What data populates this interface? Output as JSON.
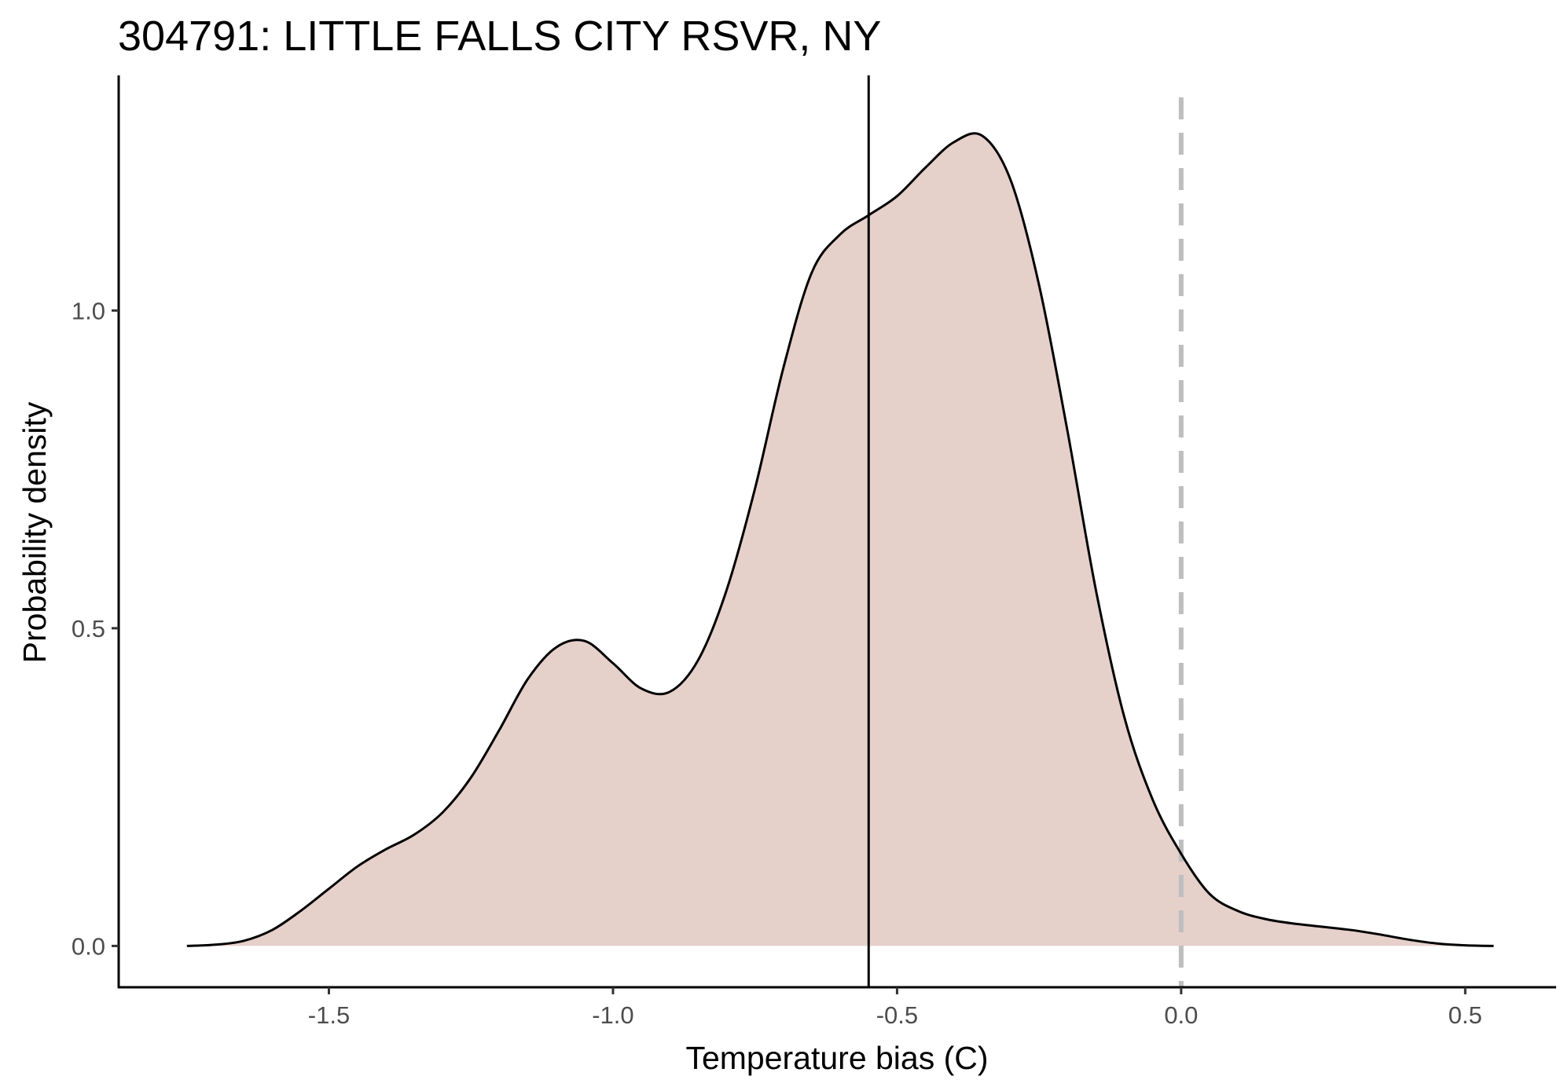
{
  "chart_data": {
    "type": "area",
    "title": "304791: LITTLE FALLS CITY RSVR, NY",
    "xlabel": "Temperature bias (C)",
    "ylabel": "Probability density",
    "xlim": [
      -1.87,
      0.66
    ],
    "ylim": [
      -0.065,
      1.37
    ],
    "x_ticks": [
      -1.5,
      -1.0,
      -0.5,
      0.0,
      0.5
    ],
    "x_tick_labels": [
      "-1.5",
      "-1.0",
      "-0.5",
      "0.0",
      "0.5"
    ],
    "y_ticks": [
      0.0,
      0.5,
      1.0
    ],
    "y_tick_labels": [
      "0.0",
      "0.5",
      "1.0"
    ],
    "grid": false,
    "fill_color": "#e6d0ca",
    "line_color": "#000000",
    "mean_line": {
      "x": -0.55,
      "color": "#000000",
      "style": "solid"
    },
    "reference_line": {
      "x": 0.0,
      "color": "#bebebe",
      "style": "dashed"
    },
    "series": [
      {
        "x": [
          -1.75,
          -1.7,
          -1.65,
          -1.6,
          -1.55,
          -1.5,
          -1.45,
          -1.4,
          -1.35,
          -1.3,
          -1.25,
          -1.2,
          -1.15,
          -1.1,
          -1.05,
          -1.0,
          -0.95,
          -0.9,
          -0.85,
          -0.8,
          -0.75,
          -0.7,
          -0.65,
          -0.6,
          -0.55,
          -0.5,
          -0.45,
          -0.4,
          -0.35,
          -0.3,
          -0.25,
          -0.2,
          -0.15,
          -0.1,
          -0.05,
          0.0,
          0.05,
          0.1,
          0.15,
          0.2,
          0.25,
          0.3,
          0.35,
          0.4,
          0.45,
          0.5,
          0.55
        ],
        "y": [
          0.0,
          0.002,
          0.008,
          0.025,
          0.055,
          0.09,
          0.125,
          0.152,
          0.175,
          0.21,
          0.265,
          0.34,
          0.42,
          0.47,
          0.48,
          0.445,
          0.405,
          0.4,
          0.45,
          0.56,
          0.72,
          0.91,
          1.06,
          1.12,
          1.15,
          1.18,
          1.225,
          1.265,
          1.275,
          1.205,
          1.04,
          0.81,
          0.56,
          0.36,
          0.23,
          0.145,
          0.082,
          0.055,
          0.042,
          0.035,
          0.03,
          0.025,
          0.018,
          0.01,
          0.004,
          0.001,
          0.0
        ]
      }
    ]
  }
}
